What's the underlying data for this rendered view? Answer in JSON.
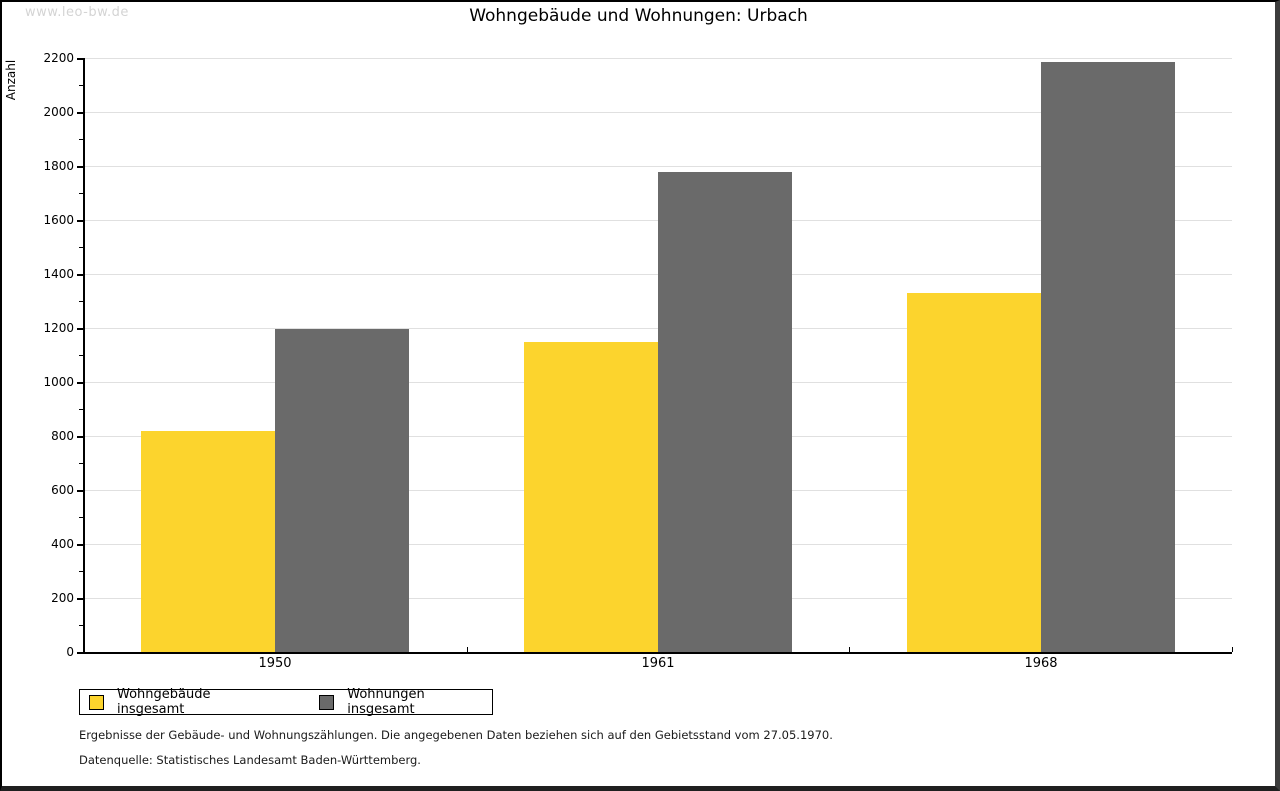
{
  "watermark": "www.leo-bw.de",
  "title": "Wohngebäude und Wohnungen: Urbach",
  "footnotes": {
    "line1": "Ergebnisse der Gebäude- und Wohnungszählungen. Die angegebenen Daten beziehen sich auf den Gebietsstand vom 27.05.1970.",
    "line2": "Datenquelle: Statistisches Landesamt Baden-Württemberg."
  },
  "chart_data": {
    "type": "bar",
    "title": "Wohngebäude und Wohnungen: Urbach",
    "xlabel": "",
    "ylabel": "Anzahl",
    "categories": [
      "1950",
      "1961",
      "1968"
    ],
    "series": [
      {
        "name": "Wohngebäude insgesamt",
        "color": "#fcd42d",
        "values": [
          818,
          1147,
          1328
        ]
      },
      {
        "name": "Wohnungen insgesamt",
        "color": "#6a6a6a",
        "values": [
          1197,
          1779,
          2187
        ]
      }
    ],
    "ylim": [
      0,
      2200
    ],
    "ytick_step": 200,
    "yminor_step": 100,
    "grid": true,
    "gridline_color": "#e0e0e0",
    "legend_position": "bottom-left"
  }
}
